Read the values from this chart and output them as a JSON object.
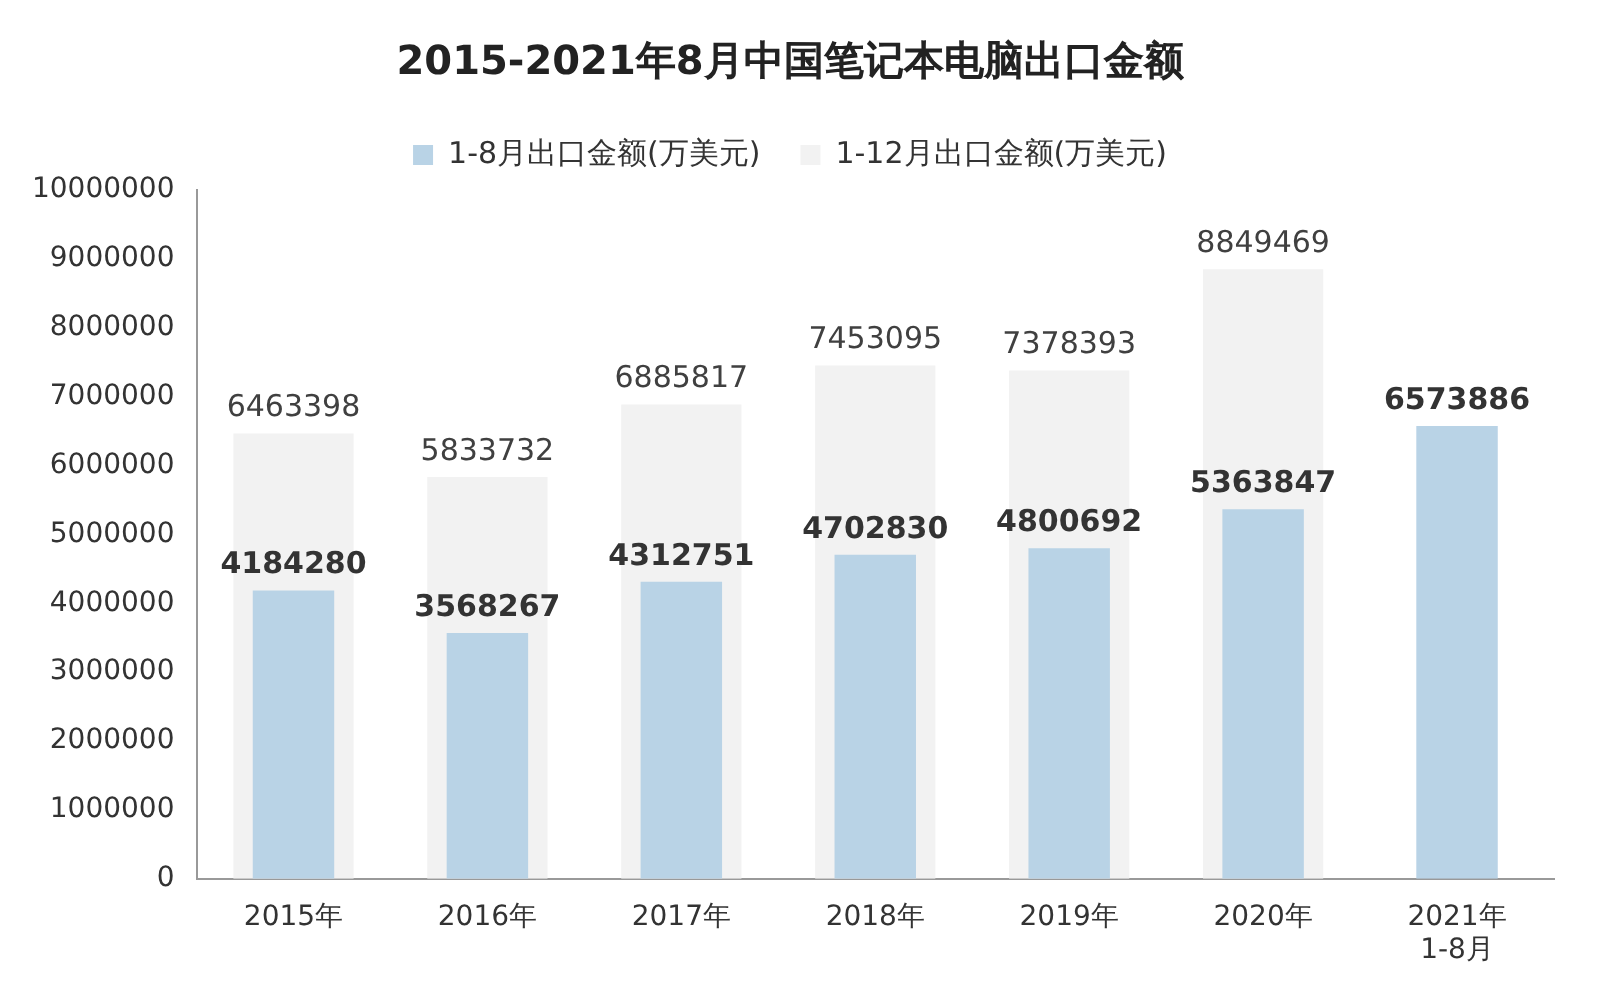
{
  "chart_data": {
    "type": "bar",
    "title": "2015-2021年8月中国笔记本电脑出口金额",
    "categories": [
      "2015年",
      "2016年",
      "2017年",
      "2018年",
      "2019年",
      "2020年",
      "2021年1-8月"
    ],
    "series": [
      {
        "name": "1-12月出口金额(万美元)",
        "color": "#f2f2f2",
        "values": [
          6463398,
          5833732,
          6885817,
          7453095,
          7378393,
          8849469,
          null
        ]
      },
      {
        "name": "1-8月出口金额(万美元)",
        "color": "#b9d3e6",
        "values": [
          4184280,
          3568267,
          4312751,
          4702830,
          4800692,
          5363847,
          6573886
        ]
      }
    ],
    "ylim": [
      0,
      10000000
    ],
    "yticks": [
      0,
      1000000,
      2000000,
      3000000,
      4000000,
      5000000,
      6000000,
      7000000,
      8000000,
      9000000,
      10000000
    ],
    "grid": false,
    "legend": "top",
    "data_labels": true
  }
}
